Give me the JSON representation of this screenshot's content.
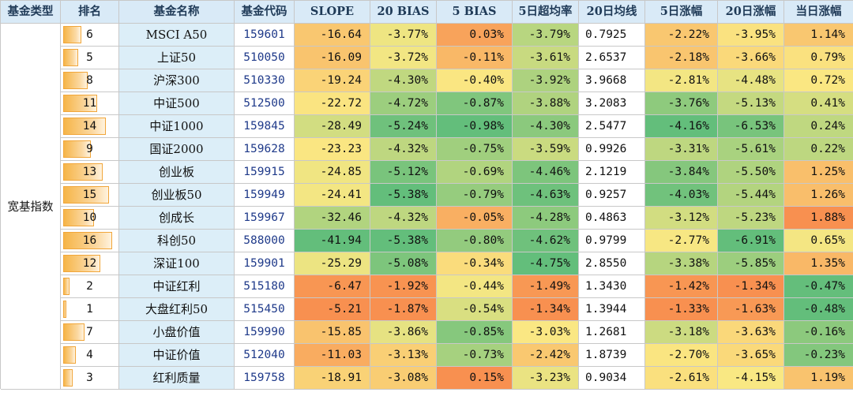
{
  "headers": [
    "基金类型",
    "排名",
    "基金名称",
    "基金代码",
    "SLOPE",
    "20 BIAS",
    "5 BIAS",
    "5日超均率",
    "20日均线",
    "5日涨幅",
    "20日涨幅",
    "当日涨幅"
  ],
  "category": "宽基指数",
  "max_rank": 16,
  "rows": [
    {
      "rank": 6,
      "name": "MSCI A50",
      "code": "159601",
      "slope": "-16.64",
      "bias20": "-3.77%",
      "bias5": "0.03%",
      "super5": "-3.79%",
      "ma20": "0.7925",
      "chg5": "-2.22%",
      "chg20": "-3.95%",
      "chg1": "1.14%"
    },
    {
      "rank": 5,
      "name": "上证50",
      "code": "510050",
      "slope": "-16.09",
      "bias20": "-3.72%",
      "bias5": "-0.11%",
      "super5": "-3.61%",
      "ma20": "2.6537",
      "chg5": "-2.18%",
      "chg20": "-3.66%",
      "chg1": "0.79%"
    },
    {
      "rank": 8,
      "name": "沪深300",
      "code": "510330",
      "slope": "-19.24",
      "bias20": "-4.30%",
      "bias5": "-0.40%",
      "super5": "-3.92%",
      "ma20": "3.9668",
      "chg5": "-2.81%",
      "chg20": "-4.48%",
      "chg1": "0.72%"
    },
    {
      "rank": 11,
      "name": "中证500",
      "code": "512500",
      "slope": "-22.72",
      "bias20": "-4.72%",
      "bias5": "-0.87%",
      "super5": "-3.88%",
      "ma20": "3.2083",
      "chg5": "-3.76%",
      "chg20": "-5.13%",
      "chg1": "0.41%"
    },
    {
      "rank": 14,
      "name": "中证1000",
      "code": "159845",
      "slope": "-28.49",
      "bias20": "-5.24%",
      "bias5": "-0.98%",
      "super5": "-4.30%",
      "ma20": "2.5477",
      "chg5": "-4.16%",
      "chg20": "-6.53%",
      "chg1": "0.24%"
    },
    {
      "rank": 9,
      "name": "国证2000",
      "code": "159628",
      "slope": "-23.23",
      "bias20": "-4.32%",
      "bias5": "-0.75%",
      "super5": "-3.59%",
      "ma20": "0.9926",
      "chg5": "-3.31%",
      "chg20": "-5.61%",
      "chg1": "0.22%"
    },
    {
      "rank": 13,
      "name": "创业板",
      "code": "159915",
      "slope": "-24.85",
      "bias20": "-5.12%",
      "bias5": "-0.69%",
      "super5": "-4.46%",
      "ma20": "2.1219",
      "chg5": "-3.84%",
      "chg20": "-5.50%",
      "chg1": "1.25%"
    },
    {
      "rank": 15,
      "name": "创业板50",
      "code": "159949",
      "slope": "-24.41",
      "bias20": "-5.38%",
      "bias5": "-0.79%",
      "super5": "-4.63%",
      "ma20": "0.9257",
      "chg5": "-4.03%",
      "chg20": "-5.44%",
      "chg1": "1.26%"
    },
    {
      "rank": 10,
      "name": "创成长",
      "code": "159967",
      "slope": "-32.46",
      "bias20": "-4.32%",
      "bias5": "-0.05%",
      "super5": "-4.28%",
      "ma20": "0.4863",
      "chg5": "-3.12%",
      "chg20": "-5.23%",
      "chg1": "1.88%"
    },
    {
      "rank": 16,
      "name": "科创50",
      "code": "588000",
      "slope": "-41.94",
      "bias20": "-5.38%",
      "bias5": "-0.80%",
      "super5": "-4.62%",
      "ma20": "0.9799",
      "chg5": "-2.77%",
      "chg20": "-6.91%",
      "chg1": "0.65%"
    },
    {
      "rank": 12,
      "name": "深证100",
      "code": "159901",
      "slope": "-25.29",
      "bias20": "-5.08%",
      "bias5": "-0.34%",
      "super5": "-4.75%",
      "ma20": "2.8550",
      "chg5": "-3.38%",
      "chg20": "-5.85%",
      "chg1": "1.35%"
    },
    {
      "rank": 2,
      "name": "中证红利",
      "code": "515180",
      "slope": "-6.47",
      "bias20": "-1.92%",
      "bias5": "-0.44%",
      "super5": "-1.49%",
      "ma20": "1.3430",
      "chg5": "-1.42%",
      "chg20": "-1.34%",
      "chg1": "-0.47%"
    },
    {
      "rank": 1,
      "name": "大盘红利50",
      "code": "515450",
      "slope": "-5.21",
      "bias20": "-1.87%",
      "bias5": "-0.54%",
      "super5": "-1.34%",
      "ma20": "1.3944",
      "chg5": "-1.33%",
      "chg20": "-1.63%",
      "chg1": "-0.48%"
    },
    {
      "rank": 7,
      "name": "小盘价值",
      "code": "159990",
      "slope": "-15.85",
      "bias20": "-3.86%",
      "bias5": "-0.85%",
      "super5": "-3.03%",
      "ma20": "1.2681",
      "chg5": "-3.18%",
      "chg20": "-3.63%",
      "chg1": "-0.16%"
    },
    {
      "rank": 4,
      "name": "中证价值",
      "code": "512040",
      "slope": "-11.03",
      "bias20": "-3.13%",
      "bias5": "-0.73%",
      "super5": "-2.42%",
      "ma20": "1.8739",
      "chg5": "-2.70%",
      "chg20": "-3.65%",
      "chg1": "-0.23%"
    },
    {
      "rank": 3,
      "name": "红利质量",
      "code": "159758",
      "slope": "-18.91",
      "bias20": "-3.08%",
      "bias5": "0.15%",
      "super5": "-3.23%",
      "ma20": "0.9034",
      "chg5": "-2.61%",
      "chg20": "-4.15%",
      "chg1": "1.19%"
    }
  ]
}
